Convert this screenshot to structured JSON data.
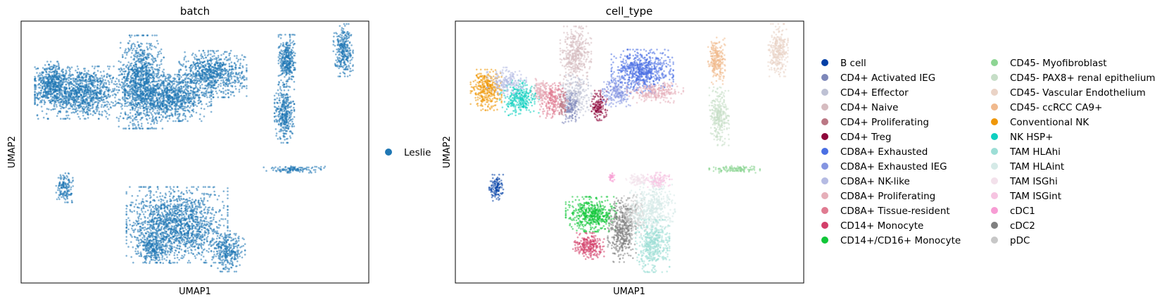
{
  "chart_data": [
    {
      "type": "scatter",
      "title": "batch",
      "xlabel": "UMAP1",
      "ylabel": "UMAP2",
      "ticks": "none",
      "legend_position": "right",
      "series": [
        {
          "name": "Leslie",
          "color": "#1f77b4"
        }
      ],
      "clusters": [
        {
          "label": "Leslie",
          "x": 2.0,
          "y": 7.2,
          "rx": 1.6,
          "ry": 0.9,
          "n": 1200
        },
        {
          "label": "Leslie",
          "x": 4.4,
          "y": 7.6,
          "rx": 0.8,
          "ry": 1.6,
          "n": 1100
        },
        {
          "label": "Leslie",
          "x": 5.6,
          "y": 7.0,
          "rx": 1.4,
          "ry": 0.8,
          "n": 900
        },
        {
          "label": "Leslie",
          "x": 7.2,
          "y": 7.9,
          "rx": 1.2,
          "ry": 0.8,
          "n": 800
        },
        {
          "label": "Leslie",
          "x": 0.9,
          "y": 7.6,
          "rx": 0.6,
          "ry": 0.7,
          "n": 400
        },
        {
          "label": "Leslie",
          "x": 1.4,
          "y": 3.6,
          "rx": 0.3,
          "ry": 0.5,
          "n": 150
        },
        {
          "label": "Leslie",
          "x": 10.1,
          "y": 8.4,
          "rx": 0.3,
          "ry": 0.9,
          "n": 350
        },
        {
          "label": "Leslie",
          "x": 10.0,
          "y": 6.4,
          "rx": 0.35,
          "ry": 1.0,
          "n": 350
        },
        {
          "label": "Leslie",
          "x": 12.3,
          "y": 8.8,
          "rx": 0.35,
          "ry": 0.9,
          "n": 300
        },
        {
          "label": "Leslie",
          "x": 10.4,
          "y": 4.3,
          "rx": 1.1,
          "ry": 0.12,
          "n": 120
        },
        {
          "label": "Leslie",
          "x": 5.8,
          "y": 2.2,
          "rx": 1.8,
          "ry": 1.3,
          "n": 1600
        },
        {
          "label": "Leslie",
          "x": 4.9,
          "y": 1.3,
          "rx": 0.6,
          "ry": 0.5,
          "n": 250
        },
        {
          "label": "Leslie",
          "x": 7.8,
          "y": 1.2,
          "rx": 0.6,
          "ry": 0.7,
          "n": 300
        }
      ]
    },
    {
      "type": "scatter",
      "title": "cell_type",
      "xlabel": "UMAP1",
      "ylabel": "UMAP2",
      "ticks": "none",
      "legend_position": "right",
      "legend_columns": 2,
      "series": [
        {
          "name": "B cell",
          "color": "#023fa5"
        },
        {
          "name": "CD4+ Activated IEG",
          "color": "#7d87b9"
        },
        {
          "name": "CD4+ Effector",
          "color": "#bec1d4"
        },
        {
          "name": "CD4+ Naive",
          "color": "#d6bcc0"
        },
        {
          "name": "CD4+ Proliferating",
          "color": "#bb7784"
        },
        {
          "name": "CD4+ Treg",
          "color": "#8e063b"
        },
        {
          "name": "CD8A+ Exhausted",
          "color": "#4a6fe3"
        },
        {
          "name": "CD8A+ Exhausted IEG",
          "color": "#8595e1"
        },
        {
          "name": "CD8A+ NK-like",
          "color": "#b5bbe3"
        },
        {
          "name": "CD8A+ Proliferating",
          "color": "#e6afb9"
        },
        {
          "name": "CD8A+ Tissue-resident",
          "color": "#e07b91"
        },
        {
          "name": "CD14+ Monocyte",
          "color": "#d33f6a"
        },
        {
          "name": "CD14+/CD16+ Monocyte",
          "color": "#11c638"
        },
        {
          "name": "CD45- Myofibroblast",
          "color": "#8dd593"
        },
        {
          "name": "CD45- PAX8+ renal epithelium",
          "color": "#c6dec7"
        },
        {
          "name": "CD45- Vascular Endothelium",
          "color": "#ead3c6"
        },
        {
          "name": "CD45- ccRCC CA9+",
          "color": "#f0b98d"
        },
        {
          "name": "Conventional NK",
          "color": "#ef9708"
        },
        {
          "name": "NK HSP+",
          "color": "#0fcfc0"
        },
        {
          "name": "TAM HLAhi",
          "color": "#9cded6"
        },
        {
          "name": "TAM HLAint",
          "color": "#d5eae7"
        },
        {
          "name": "TAM ISGhi",
          "color": "#f3e1eb"
        },
        {
          "name": "TAM ISGint",
          "color": "#f6c4e1"
        },
        {
          "name": "cDC1",
          "color": "#f79cd4"
        },
        {
          "name": "cDC2",
          "color": "#7f7f7f"
        },
        {
          "name": "pDC",
          "color": "#c7c7c7"
        }
      ],
      "clusters": [
        {
          "label": "Conventional NK",
          "x": 0.9,
          "y": 7.3,
          "rx": 0.55,
          "ry": 0.7,
          "n": 350
        },
        {
          "label": "NK HSP+",
          "x": 2.2,
          "y": 7.0,
          "rx": 0.7,
          "ry": 0.6,
          "n": 300
        },
        {
          "label": "CD8A+ NK-like",
          "x": 1.7,
          "y": 7.6,
          "rx": 0.7,
          "ry": 0.5,
          "n": 200
        },
        {
          "label": "CD4+ Naive",
          "x": 4.4,
          "y": 8.6,
          "rx": 0.55,
          "ry": 1.0,
          "n": 400
        },
        {
          "label": "CD4+ Effector",
          "x": 4.4,
          "y": 7.1,
          "rx": 0.6,
          "ry": 0.7,
          "n": 250
        },
        {
          "label": "CD4+ Activated IEG",
          "x": 4.2,
          "y": 6.6,
          "rx": 0.3,
          "ry": 0.6,
          "n": 120
        },
        {
          "label": "CD8A+ Tissue-resident",
          "x": 3.5,
          "y": 6.9,
          "rx": 0.45,
          "ry": 0.6,
          "n": 220
        },
        {
          "label": "CD8A+ Proliferating",
          "x": 3.0,
          "y": 7.3,
          "rx": 0.3,
          "ry": 0.4,
          "n": 100
        },
        {
          "label": "CD4+ Proliferating",
          "x": 3.9,
          "y": 6.8,
          "rx": 0.2,
          "ry": 0.4,
          "n": 60
        },
        {
          "label": "CD4+ Treg",
          "x": 5.3,
          "y": 6.7,
          "rx": 0.3,
          "ry": 0.55,
          "n": 140
        },
        {
          "label": "CD8A+ Exhausted",
          "x": 7.0,
          "y": 8.0,
          "rx": 1.1,
          "ry": 0.75,
          "n": 700
        },
        {
          "label": "CD8A+ Exhausted IEG",
          "x": 6.0,
          "y": 7.2,
          "rx": 0.5,
          "ry": 0.5,
          "n": 200
        },
        {
          "label": "CD8A+ Proliferating",
          "x": 7.5,
          "y": 7.2,
          "rx": 1.0,
          "ry": 0.35,
          "n": 250
        },
        {
          "label": "B cell",
          "x": 1.3,
          "y": 3.6,
          "rx": 0.25,
          "ry": 0.45,
          "n": 120
        },
        {
          "label": "CD45- ccRCC CA9+",
          "x": 9.9,
          "y": 8.4,
          "rx": 0.3,
          "ry": 0.8,
          "n": 250
        },
        {
          "label": "CD45- PAX8+ renal epithelium",
          "x": 10.0,
          "y": 6.3,
          "rx": 0.35,
          "ry": 1.0,
          "n": 300
        },
        {
          "label": "CD45- Vascular Endothelium",
          "x": 12.3,
          "y": 8.8,
          "rx": 0.35,
          "ry": 0.9,
          "n": 300
        },
        {
          "label": "CD45- Myofibroblast",
          "x": 10.6,
          "y": 4.3,
          "rx": 0.9,
          "ry": 0.12,
          "n": 120
        },
        {
          "label": "CD14+/CD16+ Monocyte",
          "x": 5.0,
          "y": 2.6,
          "rx": 0.9,
          "ry": 0.6,
          "n": 500
        },
        {
          "label": "CD14+ Monocyte",
          "x": 4.9,
          "y": 1.4,
          "rx": 0.55,
          "ry": 0.45,
          "n": 250
        },
        {
          "label": "cDC2",
          "x": 6.2,
          "y": 2.0,
          "rx": 0.5,
          "ry": 1.1,
          "n": 450
        },
        {
          "label": "pDC",
          "x": 6.7,
          "y": 2.6,
          "rx": 0.4,
          "ry": 0.7,
          "n": 150
        },
        {
          "label": "TAM HLAint",
          "x": 7.4,
          "y": 2.8,
          "rx": 0.8,
          "ry": 1.0,
          "n": 500
        },
        {
          "label": "TAM HLAhi",
          "x": 7.4,
          "y": 1.4,
          "rx": 0.6,
          "ry": 0.9,
          "n": 450
        },
        {
          "label": "TAM ISGint",
          "x": 7.6,
          "y": 3.9,
          "rx": 0.5,
          "ry": 0.25,
          "n": 120
        },
        {
          "label": "TAM ISGhi",
          "x": 6.8,
          "y": 3.9,
          "rx": 0.4,
          "ry": 0.2,
          "n": 80
        },
        {
          "label": "cDC1",
          "x": 5.8,
          "y": 4.0,
          "rx": 0.12,
          "ry": 0.15,
          "n": 30
        }
      ]
    }
  ]
}
